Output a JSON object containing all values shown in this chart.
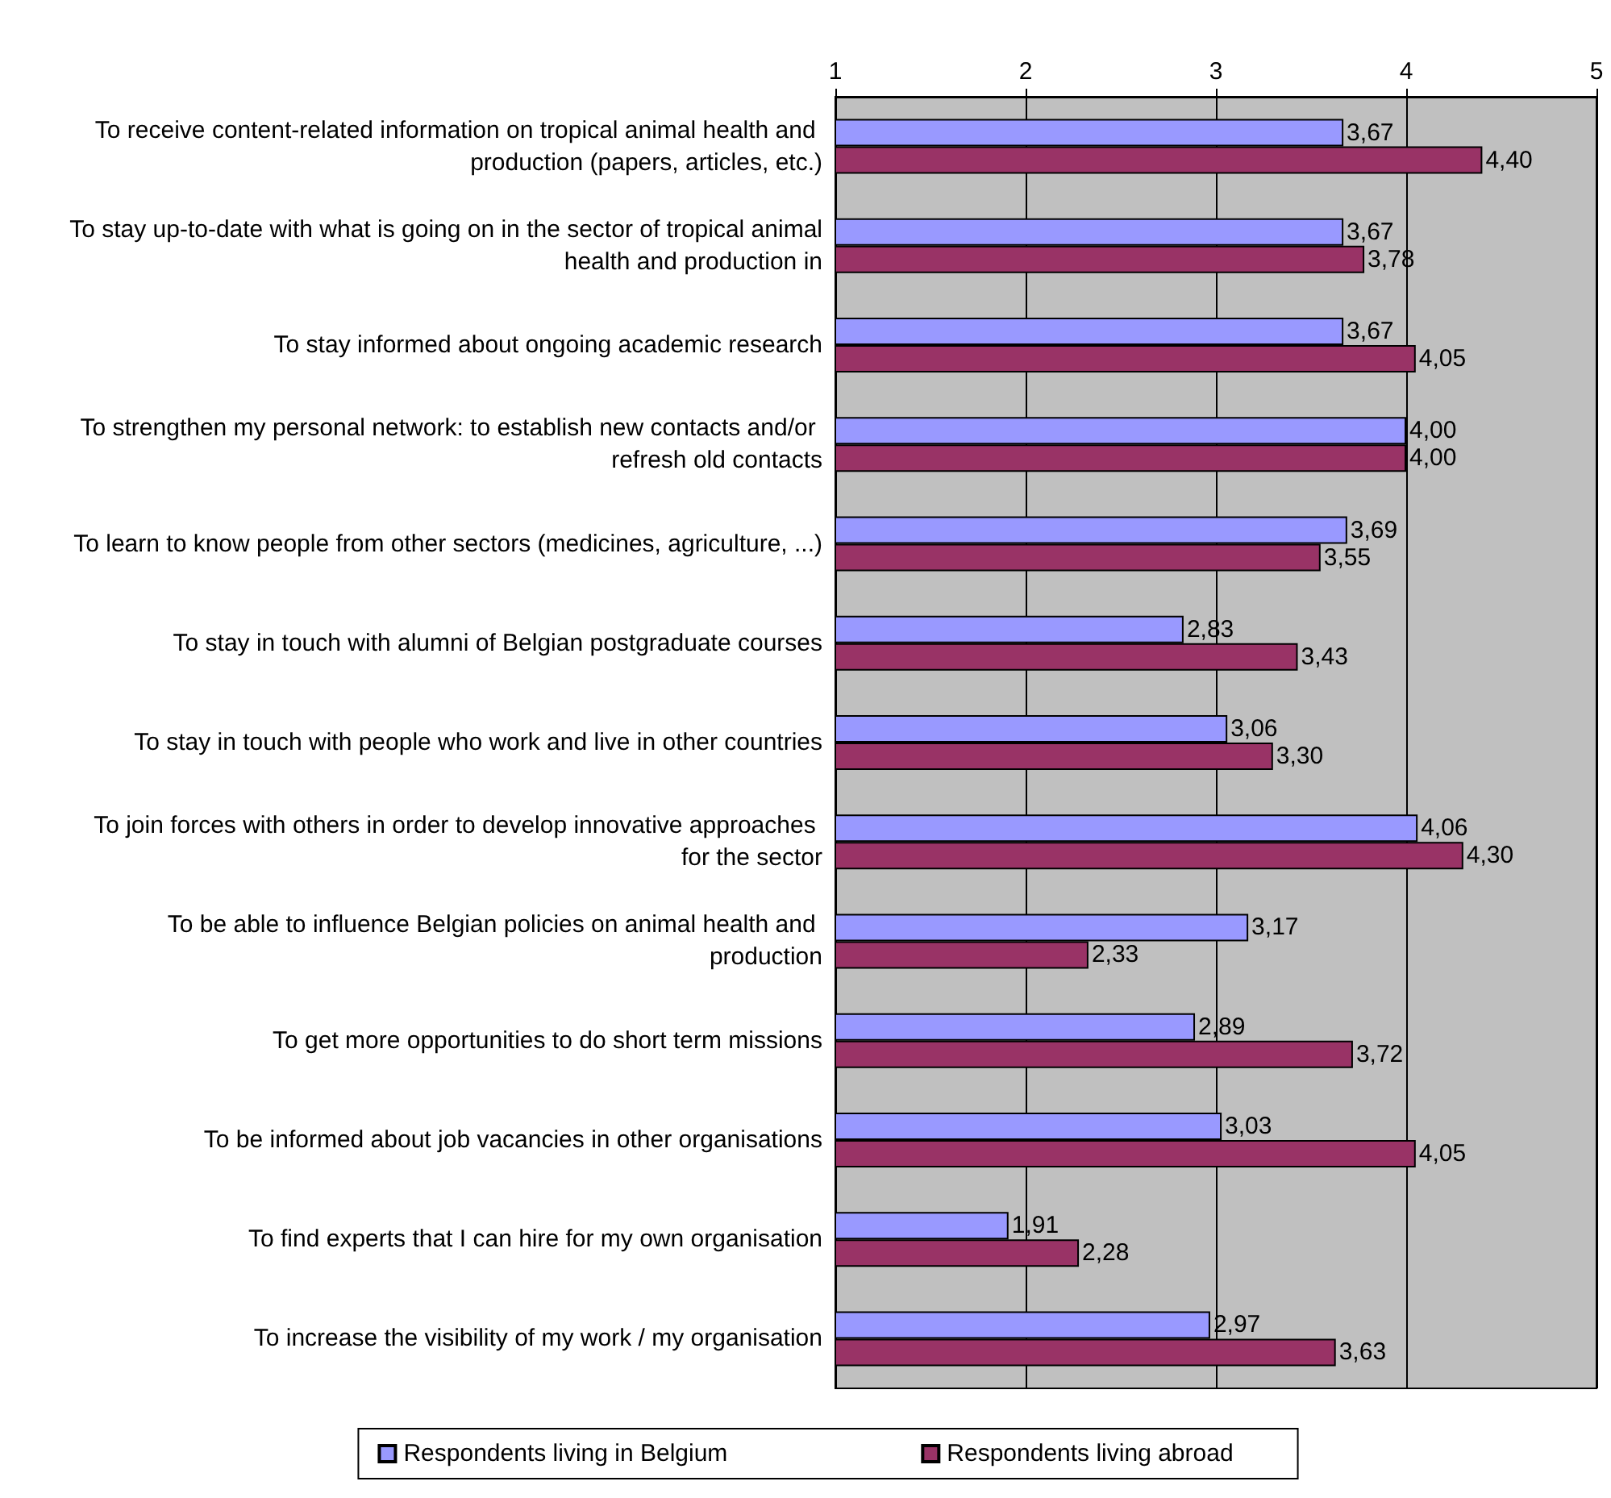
{
  "chart_data": {
    "type": "bar",
    "orientation": "horizontal",
    "categories": [
      "To receive content-related information on tropical animal health and production (papers, articles, etc.)",
      "To stay up-to-date with what is going on in the sector of tropical animal health and production in",
      "To stay informed about ongoing academic research",
      "To strengthen my personal network: to establish new contacts and/or refresh old contacts",
      "To learn to know people from other sectors (medicines, agriculture, ...)",
      "To stay in touch with alumni of Belgian postgraduate courses",
      "To stay in touch with people who work and live in other countries",
      "To join forces with others in order to develop innovative approaches for the sector",
      "To be able to influence Belgian policies on animal health and production",
      "To get more opportunities to do short term missions",
      "To be informed about job vacancies in other organisations",
      "To find experts that I can hire for my own organisation",
      "To increase the visibility of my work / my organisation"
    ],
    "series": [
      {
        "name": "Respondents living in Belgium",
        "color": "#9999ff",
        "values": [
          3.67,
          3.67,
          3.67,
          4.0,
          3.69,
          2.83,
          3.06,
          4.06,
          3.17,
          2.89,
          3.03,
          1.91,
          2.97
        ],
        "value_labels": [
          "3,67",
          "3,67",
          "3,67",
          "4,00",
          "3,69",
          "2,83",
          "3,06",
          "4,06",
          "3,17",
          "2,89",
          "3,03",
          "1,91",
          "2,97"
        ]
      },
      {
        "name": "Respondents living abroad",
        "color": "#993366",
        "values": [
          4.4,
          3.78,
          4.05,
          4.0,
          3.55,
          3.43,
          3.3,
          4.3,
          2.33,
          3.72,
          4.05,
          2.28,
          3.63
        ],
        "value_labels": [
          "4,40",
          "3,78",
          "4,05",
          "4,00",
          "3,55",
          "3,43",
          "3,30",
          "4,30",
          "2,33",
          "3,72",
          "4,05",
          "2,28",
          "3,63"
        ]
      }
    ],
    "xlim": [
      1,
      5
    ],
    "xticks": [
      1,
      2,
      3,
      4,
      5
    ],
    "grid": "x",
    "legend": "bottom"
  }
}
